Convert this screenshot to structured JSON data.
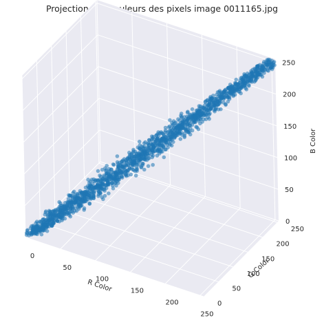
{
  "chart_data": {
    "type": "scatter",
    "dimensions": 3,
    "title": "Projection des couleurs des pixels image 0011165.jpg",
    "xlabel": "R Color",
    "ylabel": "G Color",
    "zlabel": "B Color",
    "xlim": [
      0,
      255
    ],
    "ylim": [
      0,
      255
    ],
    "zlim": [
      0,
      255
    ],
    "xticks": [
      "0",
      "50",
      "100",
      "150",
      "200",
      "250"
    ],
    "yticks": [
      "0",
      "50",
      "100",
      "150",
      "200",
      "250"
    ],
    "zticks": [
      "0",
      "50",
      "100",
      "150",
      "200",
      "250"
    ],
    "grid": true,
    "series": [
      {
        "name": "pixels",
        "color": "#1f77b4",
        "description": "dense cloud of pixel colours along the grey diagonal R≈G≈B",
        "spine": [
          [
            5,
            5,
            5
          ],
          [
            60,
            62,
            58
          ],
          [
            120,
            122,
            118
          ],
          [
            180,
            182,
            178
          ],
          [
            250,
            252,
            250
          ]
        ],
        "spread": 14
      }
    ]
  },
  "colors": {
    "pane": "#eaeaf2",
    "grid": "#ffffff",
    "points": "#1f77b4"
  }
}
